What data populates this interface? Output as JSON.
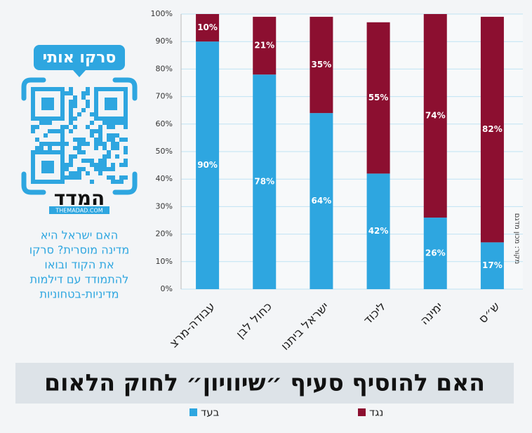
{
  "chart_data": {
    "type": "stacked_bar",
    "title": "האם להוסיף סעיף ״שיוויון״ לחוק הלאום",
    "source": "מקור: מכון מדגם",
    "categories": [
      "עבודה-מרצ",
      "כחול לבן",
      "ישראל ביתנו",
      "ליכוד",
      "ימינה",
      "ש״ס"
    ],
    "series": [
      {
        "name": "בעד",
        "color": "#2ea6e0",
        "values": [
          90,
          78,
          64,
          42,
          26,
          17
        ],
        "value_labels": [
          "90%",
          "78%",
          "64%",
          "42%",
          "26%",
          "17%"
        ]
      },
      {
        "name": "נגד",
        "color": "#8c0f30",
        "values": [
          10,
          21,
          35,
          55,
          74,
          82
        ],
        "value_labels": [
          "10%",
          "21%",
          "35%",
          "55%",
          "74%",
          "82%"
        ]
      }
    ],
    "ylim": [
      0,
      100
    ],
    "yticks": [
      {
        "value": 0,
        "label": "0%"
      },
      {
        "value": 10,
        "label": "10%"
      },
      {
        "value": 20,
        "label": "20%"
      },
      {
        "value": 30,
        "label": "30%"
      },
      {
        "value": 40,
        "label": "40%"
      },
      {
        "value": 50,
        "label": "50%"
      },
      {
        "value": 60,
        "label": "60%"
      },
      {
        "value": 70,
        "label": "70%"
      },
      {
        "value": 80,
        "label": "80%"
      },
      {
        "value": 90,
        "label": "90%"
      },
      {
        "value": 100,
        "label": "100%"
      }
    ],
    "grid": true
  },
  "promo": {
    "scan_me": "סרקו אותי",
    "brand": "המדד",
    "site": "THEMADAD.COM",
    "text_lines": [
      "האם ישראל היא",
      "מדינה מוסרית? סרקו",
      "את הקוד ובואו",
      "להתמודד עם דילמות",
      "מדיניות-בטחוניות"
    ]
  }
}
